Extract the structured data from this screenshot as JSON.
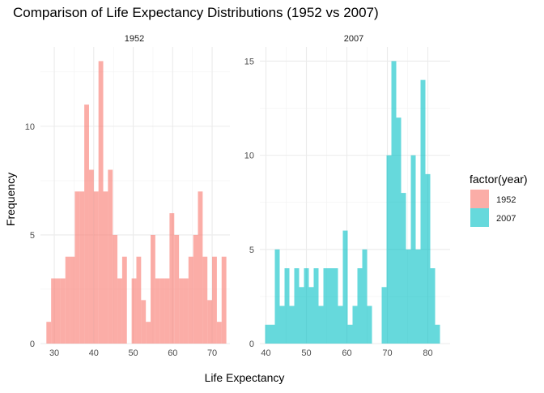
{
  "chart_data": {
    "type": "bar",
    "title": "Comparison of Life Expectancy Distributions (1952 vs 2007)",
    "xlabel": "Life Expectancy",
    "ylabel": "Frequency",
    "legend": {
      "title": "factor(year)",
      "placement": "right",
      "entries": [
        {
          "label": "1952",
          "color": "#F8766D"
        },
        {
          "label": "2007",
          "color": "#00BFC4"
        }
      ]
    },
    "grid": true,
    "panels": [
      {
        "strip": "1952",
        "color": "#F8766D",
        "xlim": [
          26.5,
          74.5
        ],
        "ylim": [
          0,
          13.65
        ],
        "x_ticks": [
          "30",
          "40",
          "50",
          "60",
          "70"
        ],
        "x_tick_values": [
          30,
          40,
          50,
          60,
          70
        ],
        "y_ticks": [
          "0",
          "5",
          "10"
        ],
        "y_tick_values": [
          0,
          5,
          10
        ],
        "bin_centers": [
          28.6,
          29.8,
          31.0,
          32.2,
          33.4,
          34.6,
          35.8,
          37.0,
          38.2,
          39.4,
          40.6,
          41.8,
          43.0,
          44.2,
          45.4,
          46.6,
          47.8,
          49.0,
          50.2,
          51.4,
          52.6,
          53.8,
          55.0,
          56.2,
          57.4,
          58.6,
          59.8,
          61.0,
          62.2,
          63.4,
          64.6,
          65.8,
          67.0,
          68.2,
          69.4,
          70.6,
          71.8,
          73.0
        ],
        "counts": [
          1,
          3,
          3,
          3,
          4,
          4,
          7,
          7,
          11,
          8,
          7,
          13,
          7,
          8,
          5,
          3,
          4,
          0,
          3,
          4,
          2,
          1,
          5,
          3,
          3,
          3,
          6,
          5,
          3,
          3,
          4,
          5,
          7,
          4,
          2,
          4,
          1,
          4
        ]
      },
      {
        "strip": "2007",
        "color": "#00BFC4",
        "xlim": [
          38.5,
          85.5
        ],
        "ylim": [
          0,
          15.75
        ],
        "x_ticks": [
          "40",
          "50",
          "60",
          "70",
          "80"
        ],
        "x_tick_values": [
          40,
          50,
          60,
          70,
          80
        ],
        "y_ticks": [
          "0",
          "5",
          "10",
          "15"
        ],
        "y_tick_values": [
          0,
          5,
          10,
          15
        ],
        "bin_centers": [
          40.4,
          41.6,
          42.8,
          44.0,
          45.2,
          46.4,
          47.6,
          48.8,
          50.0,
          51.2,
          52.4,
          53.6,
          54.8,
          56.0,
          57.2,
          58.4,
          59.6,
          60.8,
          62.0,
          63.2,
          64.4,
          65.6,
          66.8,
          68.0,
          69.2,
          70.4,
          71.6,
          72.8,
          74.0,
          75.2,
          76.4,
          77.6,
          78.8,
          80.0,
          81.2,
          82.4
        ],
        "counts": [
          1,
          1,
          5,
          2,
          4,
          2,
          4,
          3,
          4,
          3,
          4,
          2,
          4,
          4,
          4,
          2,
          6,
          1,
          2,
          4,
          5,
          2,
          0,
          0,
          3,
          10,
          15,
          12,
          8,
          5,
          10,
          5,
          14,
          9,
          4,
          1
        ]
      }
    ]
  }
}
